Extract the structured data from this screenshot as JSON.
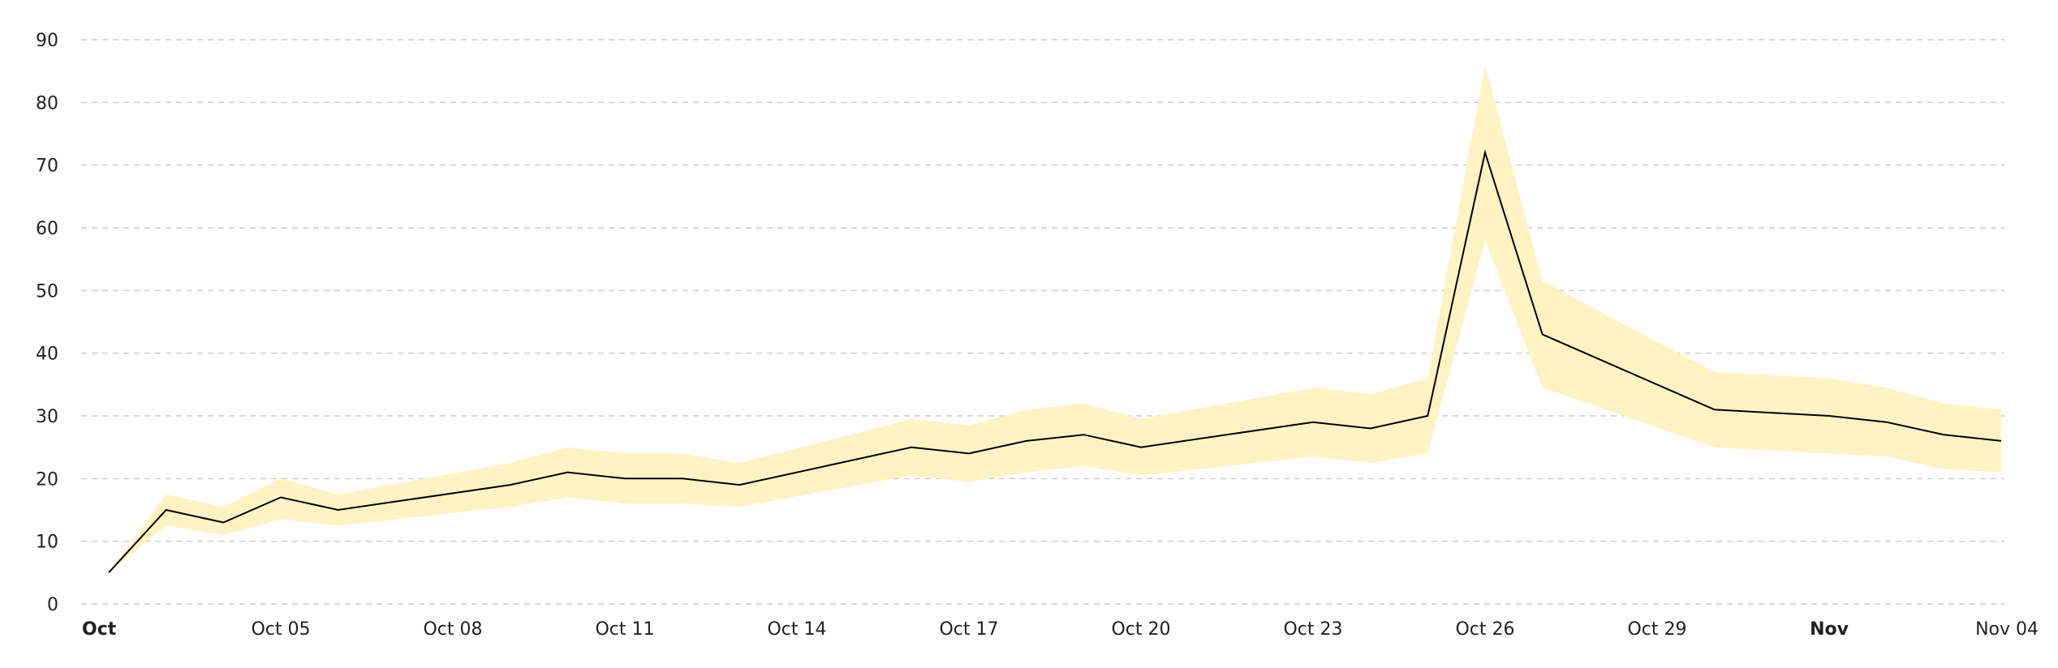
{
  "chart_data": {
    "type": "line",
    "title": "",
    "xlabel": "",
    "ylabel": "",
    "ylim": [
      0,
      90
    ],
    "yticks": [
      0,
      10,
      20,
      30,
      40,
      50,
      60,
      70,
      80,
      90
    ],
    "grid": true,
    "x_tick_labels": [
      {
        "label": "Oct",
        "date": "2023-10-02",
        "bold": true
      },
      {
        "label": "Oct 05",
        "date": "2023-10-05",
        "bold": false
      },
      {
        "label": "Oct 08",
        "date": "2023-10-08",
        "bold": false
      },
      {
        "label": "Oct 11",
        "date": "2023-10-11",
        "bold": false
      },
      {
        "label": "Oct 14",
        "date": "2023-10-14",
        "bold": false
      },
      {
        "label": "Oct 17",
        "date": "2023-10-17",
        "bold": false
      },
      {
        "label": "Oct 20",
        "date": "2023-10-20",
        "bold": false
      },
      {
        "label": "Oct 23",
        "date": "2023-10-23",
        "bold": false
      },
      {
        "label": "Oct 26",
        "date": "2023-10-26",
        "bold": false
      },
      {
        "label": "Oct 29",
        "date": "2023-10-29",
        "bold": false
      },
      {
        "label": "Nov",
        "date": "2023-11-01",
        "bold": true
      },
      {
        "label": "Nov 04",
        "date": "2023-11-04",
        "bold": false
      }
    ],
    "x": [
      "2023-10-02",
      "2023-10-03",
      "2023-10-04",
      "2023-10-05",
      "2023-10-06",
      "2023-10-09",
      "2023-10-10",
      "2023-10-11",
      "2023-10-12",
      "2023-10-13",
      "2023-10-16",
      "2023-10-17",
      "2023-10-18",
      "2023-10-19",
      "2023-10-20",
      "2023-10-23",
      "2023-10-24",
      "2023-10-25",
      "2023-10-26",
      "2023-10-27",
      "2023-10-30",
      "2023-11-01",
      "2023-11-02",
      "2023-11-03",
      "2023-11-04"
    ],
    "series": [
      {
        "values": [
          5,
          15,
          13,
          17,
          15,
          19,
          21,
          20,
          20,
          19,
          25,
          24,
          26,
          27,
          25,
          29,
          28,
          30,
          72,
          43,
          31,
          30,
          29,
          27,
          26
        ],
        "upper": [
          5,
          17.5,
          15.5,
          20,
          17.5,
          22.5,
          25,
          24,
          24,
          22.5,
          29.5,
          28.5,
          31,
          32,
          29.5,
          34.5,
          33.5,
          36,
          86,
          51.5,
          37,
          36,
          34.5,
          32,
          31
        ],
        "lower": [
          5,
          12.5,
          11,
          13.5,
          12.5,
          15.5,
          17,
          16,
          16,
          15.5,
          20.5,
          19.5,
          21,
          22,
          20.5,
          23.5,
          22.5,
          24,
          58,
          34.5,
          25,
          24,
          23.5,
          21.5,
          21
        ],
        "line_color": "#000000",
        "band_color": "#FFF3C4"
      }
    ]
  }
}
